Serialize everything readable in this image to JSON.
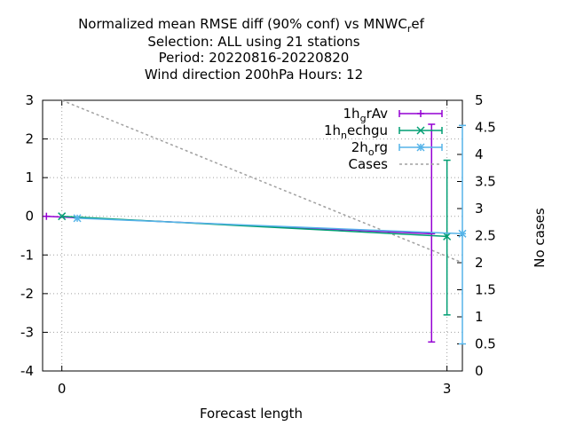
{
  "chart_data": {
    "type": "line",
    "title_lines": [
      "Normalized mean RMSE diff (90% conf) vs MNWC",
      "Selection: ALL using    21 stations",
      "Period: 20220816-20220820",
      "Wind direction 200hPa   Hours:  12"
    ],
    "title_ref_sub": "r",
    "title_ref_tail": "ef",
    "xlabel": "Forecast length",
    "ylabel_right": "No cases",
    "x_ticks": [
      0,
      3
    ],
    "y_ticks": [
      3,
      2,
      1,
      0,
      -1,
      -2,
      -3,
      -4
    ],
    "y2_ticks": [
      5,
      4.5,
      4,
      3.5,
      3,
      2.5,
      2,
      1.5,
      1,
      0.5,
      0
    ],
    "xlim": [
      -0.15,
      3.12
    ],
    "ylim": [
      -4,
      3
    ],
    "y2lim": [
      0,
      5
    ],
    "grid": true,
    "legend_position": "top-right",
    "series": [
      {
        "label_main": "1h",
        "label_sub": "g",
        "label_tail": "rAv",
        "color": "#9400d3",
        "marker": "plus",
        "x": [
          -0.12,
          2.88
        ],
        "y": [
          0,
          -0.45
        ],
        "err_low": [
          0,
          -3.25
        ],
        "err_high": [
          0,
          2.38
        ]
      },
      {
        "label_main": "1h",
        "label_sub": "n",
        "label_tail": "echgu",
        "color": "#009e73",
        "marker": "x",
        "x": [
          0,
          3
        ],
        "y": [
          0,
          -0.52
        ],
        "err_low": [
          0,
          -2.55
        ],
        "err_high": [
          0,
          1.45
        ]
      },
      {
        "label_main": "2h",
        "label_sub": "o",
        "label_tail": "rg",
        "color": "#56b4e9",
        "marker": "star",
        "x": [
          0.12,
          3.12
        ],
        "y": [
          -0.05,
          -0.45
        ],
        "err_low": [
          -0.05,
          -3.3
        ],
        "err_high": [
          -0.05,
          2.35
        ]
      }
    ],
    "cases": {
      "label": "Cases",
      "color": "#a0a0a0",
      "x": [
        0,
        3.12
      ],
      "y2": [
        5,
        2
      ]
    }
  }
}
